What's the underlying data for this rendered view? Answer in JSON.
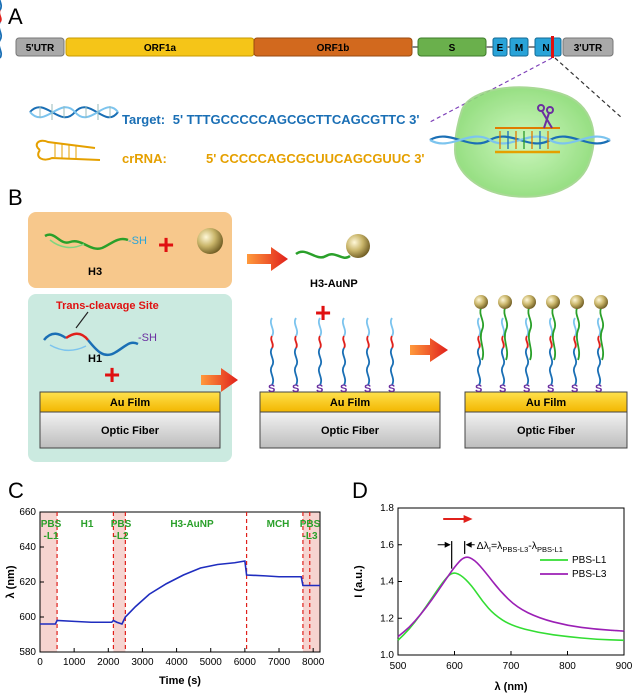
{
  "panel_a": {
    "label": "A",
    "genome": [
      "5'UTR",
      "ORF1a",
      "ORF1b",
      "S",
      "E",
      "M",
      "N",
      "3'UTR"
    ],
    "target_label": "Target:",
    "target_seq": "5' TTTGCCCCCAGCGCTTCAGCGTTC 3'",
    "crrna_label": "crRNA:",
    "crrna_seq": "5' CCCCCAGCGCUUCAGCGUUC 3'",
    "colors": {
      "utr": "#a9a9a9",
      "orf1a": "#f5c518",
      "orf1b": "#d2691e",
      "s": "#6ab04c",
      "emn": "#29a3d8",
      "target": "#1a6fb5",
      "crrna": "#e5a000"
    }
  },
  "panel_b": {
    "label": "B",
    "sh1": "-SH",
    "h3": "H3",
    "h3_aunp": "H3-AuNP",
    "trans_site": "Trans-cleavage Site",
    "h1": "H1",
    "sh2": "-SH",
    "au_film": "Au Film",
    "optic_fiber": "Optic Fiber",
    "s_letter": "S"
  },
  "panel_c": {
    "label": "C",
    "xlabel": "Time (s)",
    "ylabel": "λ (nm)",
    "xticks": [
      "0",
      "1000",
      "2000",
      "3000",
      "4000",
      "5000",
      "6000",
      "7000",
      "8000"
    ],
    "yticks": [
      "580",
      "600",
      "620",
      "640",
      "660"
    ],
    "stages": [
      "PBS",
      "-L1",
      "H1",
      "PBS",
      "-L2",
      "H3-AuNP",
      "MCH",
      "PBS",
      "-L3"
    ]
  },
  "panel_d": {
    "label": "D",
    "xlabel": "λ (nm)",
    "ylabel": "I (a.u.)",
    "xticks": [
      "500",
      "600",
      "700",
      "800",
      "900"
    ],
    "yticks": [
      "1.0",
      "1.2",
      "1.4",
      "1.6",
      "1.8"
    ],
    "annotation_main": "Δλ",
    "annotation_sub": "I",
    "annotation_eq": "=λ",
    "annotation_sub2": "PBS-L3",
    "annotation_minus": "-λ",
    "annotation_sub3": "PBS-L1"
  },
  "chart_data": [
    {
      "type": "line",
      "xlabel": "Time (s)",
      "ylabel": "λ (nm)",
      "xlim": [
        0,
        8200
      ],
      "ylim": [
        580,
        660
      ],
      "series": [
        {
          "values": [
            [
              0,
              596
            ],
            [
              450,
              596
            ],
            [
              500,
              598
            ],
            [
              1000,
              597.5
            ],
            [
              1500,
              597
            ],
            [
              2100,
              597
            ],
            [
              2150,
              598
            ],
            [
              2250,
              597
            ],
            [
              2400,
              596
            ],
            [
              2500,
              600
            ],
            [
              2800,
              606
            ],
            [
              3200,
              613
            ],
            [
              3700,
              619
            ],
            [
              4200,
              624
            ],
            [
              4700,
              628
            ],
            [
              5200,
              630
            ],
            [
              5700,
              631
            ],
            [
              6000,
              632
            ],
            [
              6050,
              624
            ],
            [
              6600,
              623.5
            ],
            [
              7000,
              623
            ],
            [
              7650,
              623
            ],
            [
              7700,
              618
            ],
            [
              7900,
              618
            ],
            [
              8200,
              618
            ]
          ]
        }
      ],
      "vlines": [
        500,
        2150,
        2500,
        6050,
        7700,
        7900
      ]
    },
    {
      "type": "line",
      "xlabel": "λ (nm)",
      "ylabel": "I (a.u.)",
      "xlim": [
        500,
        900
      ],
      "ylim": [
        1.0,
        1.8
      ],
      "series": [
        {
          "name": "PBS-L1",
          "color": "#33dd33",
          "values": [
            [
              500,
              1.08
            ],
            [
              520,
              1.14
            ],
            [
              540,
              1.22
            ],
            [
              560,
              1.31
            ],
            [
              580,
              1.4
            ],
            [
              595,
              1.45
            ],
            [
              610,
              1.44
            ],
            [
              630,
              1.38
            ],
            [
              650,
              1.29
            ],
            [
              670,
              1.22
            ],
            [
              700,
              1.16
            ],
            [
              750,
              1.12
            ],
            [
              800,
              1.1
            ],
            [
              850,
              1.085
            ],
            [
              900,
              1.08
            ]
          ]
        },
        {
          "name": "PBS-L3",
          "color": "#9b1fb5",
          "values": [
            [
              500,
              1.1
            ],
            [
              520,
              1.15
            ],
            [
              540,
              1.22
            ],
            [
              560,
              1.3
            ],
            [
              580,
              1.39
            ],
            [
              600,
              1.48
            ],
            [
              618,
              1.54
            ],
            [
              635,
              1.52
            ],
            [
              655,
              1.45
            ],
            [
              680,
              1.35
            ],
            [
              710,
              1.26
            ],
            [
              750,
              1.2
            ],
            [
              800,
              1.16
            ],
            [
              850,
              1.14
            ],
            [
              900,
              1.13
            ]
          ]
        }
      ]
    }
  ]
}
